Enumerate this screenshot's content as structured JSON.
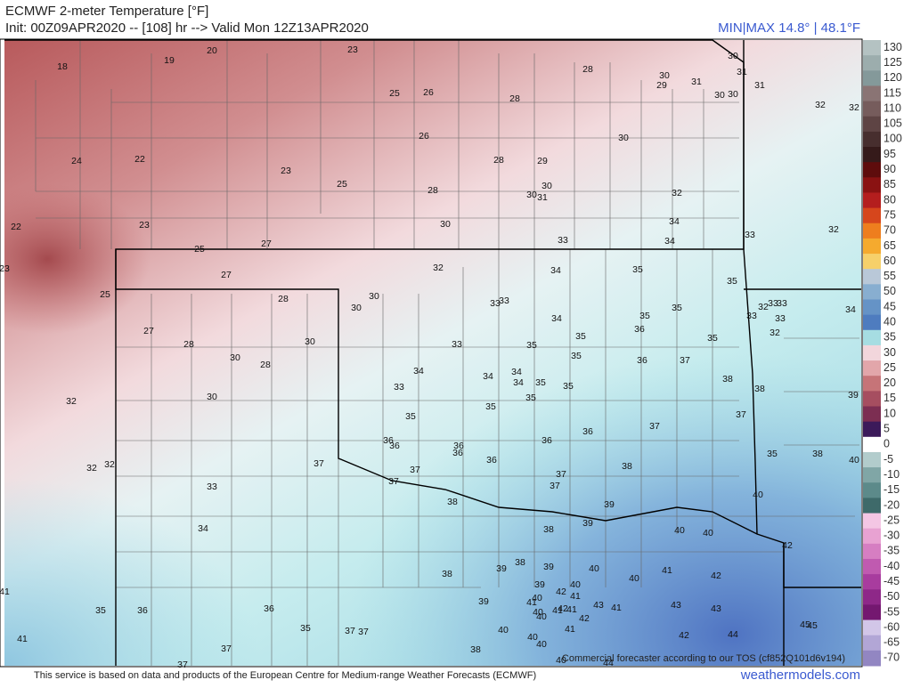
{
  "header": {
    "title": "ECMWF 2-meter Temperature [°F]",
    "subtitle": "Init: 00Z09APR2020 -- [108] hr --> Valid Mon 12Z13APR2020",
    "minmax": "MIN|MAX 14.8° | 48.1°F"
  },
  "map": {
    "labels": [
      18,
      19,
      20,
      23,
      24,
      22,
      22,
      23,
      23,
      25,
      25,
      27,
      27,
      28,
      25,
      26,
      26,
      23,
      25,
      28,
      30,
      28,
      28,
      29,
      30,
      30,
      31,
      28,
      30,
      30,
      29,
      31,
      30,
      30,
      31,
      30,
      31,
      32,
      32,
      32,
      34,
      34,
      33,
      33,
      32,
      32,
      34,
      35,
      35,
      30,
      30,
      33,
      33,
      34,
      35,
      35,
      33,
      32,
      33,
      33,
      33,
      32,
      34,
      27,
      28,
      30,
      30,
      28,
      30,
      33,
      35,
      35,
      36,
      35,
      35,
      36,
      37,
      34,
      33,
      34,
      34,
      34,
      35,
      35,
      38,
      38,
      35,
      35,
      32,
      35,
      37,
      37,
      36,
      39,
      36,
      36,
      36,
      36,
      36,
      36,
      32,
      32,
      37,
      37,
      37,
      37,
      37,
      38,
      35,
      38,
      40,
      33,
      38,
      39,
      39,
      38,
      40,
      40,
      40,
      42,
      34,
      38,
      39,
      38,
      39,
      40,
      40,
      39,
      40,
      42,
      41,
      41,
      40,
      42,
      41,
      41,
      35,
      36,
      36,
      39,
      41,
      40,
      41,
      42,
      41,
      42,
      43,
      41,
      43,
      43,
      45,
      45,
      35,
      37,
      37,
      37,
      40,
      40,
      40,
      41,
      40,
      42,
      44,
      38,
      37,
      44,
      40
    ],
    "notice": "Commercial forecaster according to our TOS (cf852Q101d6v194)"
  },
  "colorbar": {
    "ticks": [
      130,
      125,
      120,
      115,
      110,
      105,
      100,
      95,
      90,
      85,
      80,
      75,
      70,
      65,
      60,
      55,
      50,
      45,
      40,
      35,
      30,
      25,
      20,
      15,
      10,
      5,
      0,
      -5,
      -10,
      -15,
      -20,
      -25,
      -30,
      -35,
      -40,
      -45,
      -50,
      -55,
      -60,
      -65,
      -70
    ],
    "colors": [
      "#b4c2c2",
      "#9cadad",
      "#84999a",
      "#8a7474",
      "#765c5c",
      "#5e4444",
      "#472e2e",
      "#351a1a",
      "#5e0c0c",
      "#8a1212",
      "#b41e1e",
      "#d6461c",
      "#ee7e1e",
      "#f5aa2e",
      "#f6d06a",
      "#b9c8d8",
      "#88aed0",
      "#6593c6",
      "#4e7cbf",
      "#a6dde2",
      "#f2d6dc",
      "#e2a6aa",
      "#c67478",
      "#a64e60",
      "#7c2e52",
      "#3c1a5a",
      "#ffffff",
      "#b2cccc",
      "#80a6a6",
      "#5c8a8a",
      "#3e6a6a",
      "#f4c6e4",
      "#e8a2d2",
      "#d67ec2",
      "#c05ab0",
      "#a83c9e",
      "#8e2888",
      "#741870",
      "#d2c6e8",
      "#b2a6d6",
      "#9286c2"
    ]
  },
  "footer": {
    "credit": "This service is based on data and products of the European Centre for Medium-range Weather Forecasts (ECMWF)",
    "site": "weathermodels.com"
  }
}
